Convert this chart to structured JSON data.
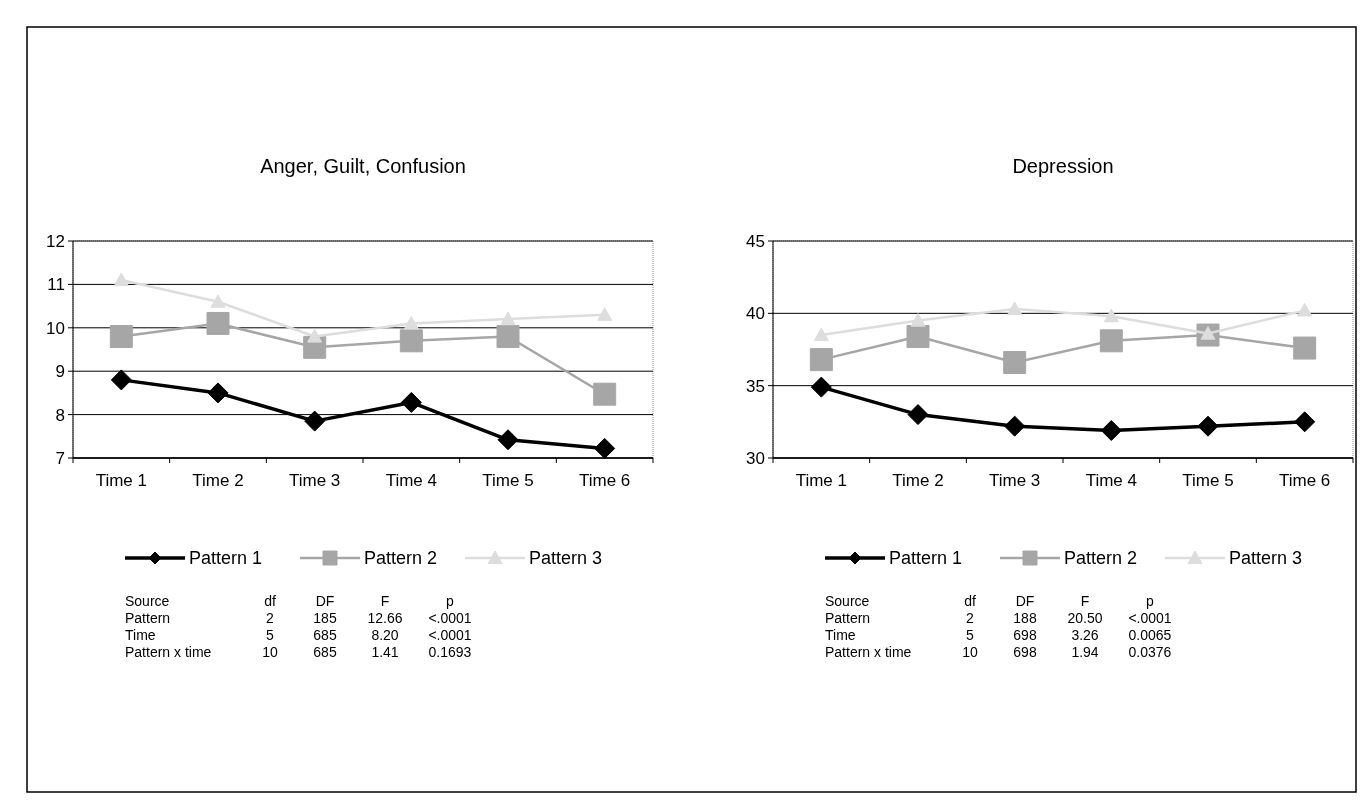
{
  "chart_data": [
    {
      "type": "line",
      "title": "Anger, Guilt, Confusion",
      "categories": [
        "Time 1",
        "Time 2",
        "Time 3",
        "Time 4",
        "Time 5",
        "Time 6"
      ],
      "ylim": [
        7,
        12
      ],
      "yticks": [
        7,
        8,
        9,
        10,
        11,
        12
      ],
      "grid": "y",
      "legend": "bottom",
      "series": [
        {
          "name": "Pattern 1",
          "color": "#000000",
          "marker": "diamond",
          "values": [
            8.8,
            8.5,
            7.85,
            8.28,
            7.42,
            7.22
          ]
        },
        {
          "name": "Pattern 2",
          "color": "#a6a6a6",
          "marker": "square",
          "values": [
            9.8,
            10.1,
            9.55,
            9.7,
            9.8,
            8.47
          ]
        },
        {
          "name": "Pattern 3",
          "color": "#dddddd",
          "marker": "triangle",
          "values": [
            11.1,
            10.6,
            9.8,
            10.1,
            10.2,
            10.3
          ]
        }
      ],
      "annotations": [
        "Source",
        "df",
        "DF",
        "F",
        "p",
        "Pattern",
        "2",
        "185",
        "12.66",
        "<.0001",
        "Time",
        "5",
        "685",
        "8.20",
        "<.0001",
        "Pattern x time",
        "10",
        "685",
        "1.41",
        "0.1693"
      ]
    },
    {
      "type": "line",
      "title": "Depression",
      "categories": [
        "Time 1",
        "Time 2",
        "Time 3",
        "Time 4",
        "Time 5",
        "Time 6"
      ],
      "ylim": [
        30,
        45
      ],
      "yticks": [
        30,
        35,
        40,
        45
      ],
      "grid": "y",
      "legend": "bottom",
      "series": [
        {
          "name": "Pattern 1",
          "color": "#000000",
          "marker": "diamond",
          "values": [
            34.9,
            33,
            32.2,
            31.9,
            32.2,
            32.5
          ]
        },
        {
          "name": "Pattern 2",
          "color": "#a6a6a6",
          "marker": "square",
          "values": [
            36.8,
            38.4,
            36.6,
            38.1,
            38.5,
            37.6
          ]
        },
        {
          "name": "Pattern 3",
          "color": "#dddddd",
          "marker": "triangle",
          "values": [
            38.5,
            39.5,
            40.3,
            39.8,
            38.6,
            40.2
          ]
        }
      ],
      "annotations": [
        "Source",
        "df",
        "DF",
        "F",
        "p",
        "Pattern",
        "2",
        "188",
        "20.50",
        "<.0001",
        "Time",
        "5",
        "698",
        "3.26",
        "0.0065",
        "Pattern x time",
        "10",
        "698",
        "1.94",
        "0.0376"
      ]
    }
  ]
}
